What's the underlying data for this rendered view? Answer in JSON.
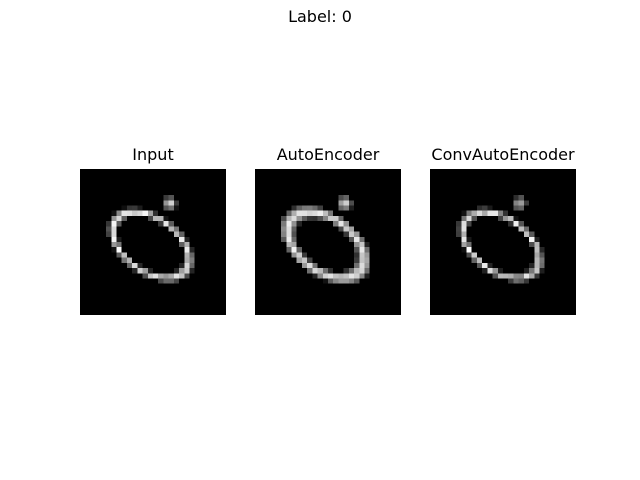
{
  "figure": {
    "suptitle": "Label: 0"
  },
  "panels": [
    {
      "title": "Input",
      "image": "handwritten-digit-zero",
      "style": "sharp"
    },
    {
      "title": "AutoEncoder",
      "image": "handwritten-digit-zero-reconstruction",
      "style": "soft"
    },
    {
      "title": "ConvAutoEncoder",
      "image": "handwritten-digit-zero-reconstruction",
      "style": "sharp-grainy"
    }
  ],
  "colors": {
    "background": "#ffffff",
    "image_background": "#000000",
    "stroke": "#ffffff"
  }
}
